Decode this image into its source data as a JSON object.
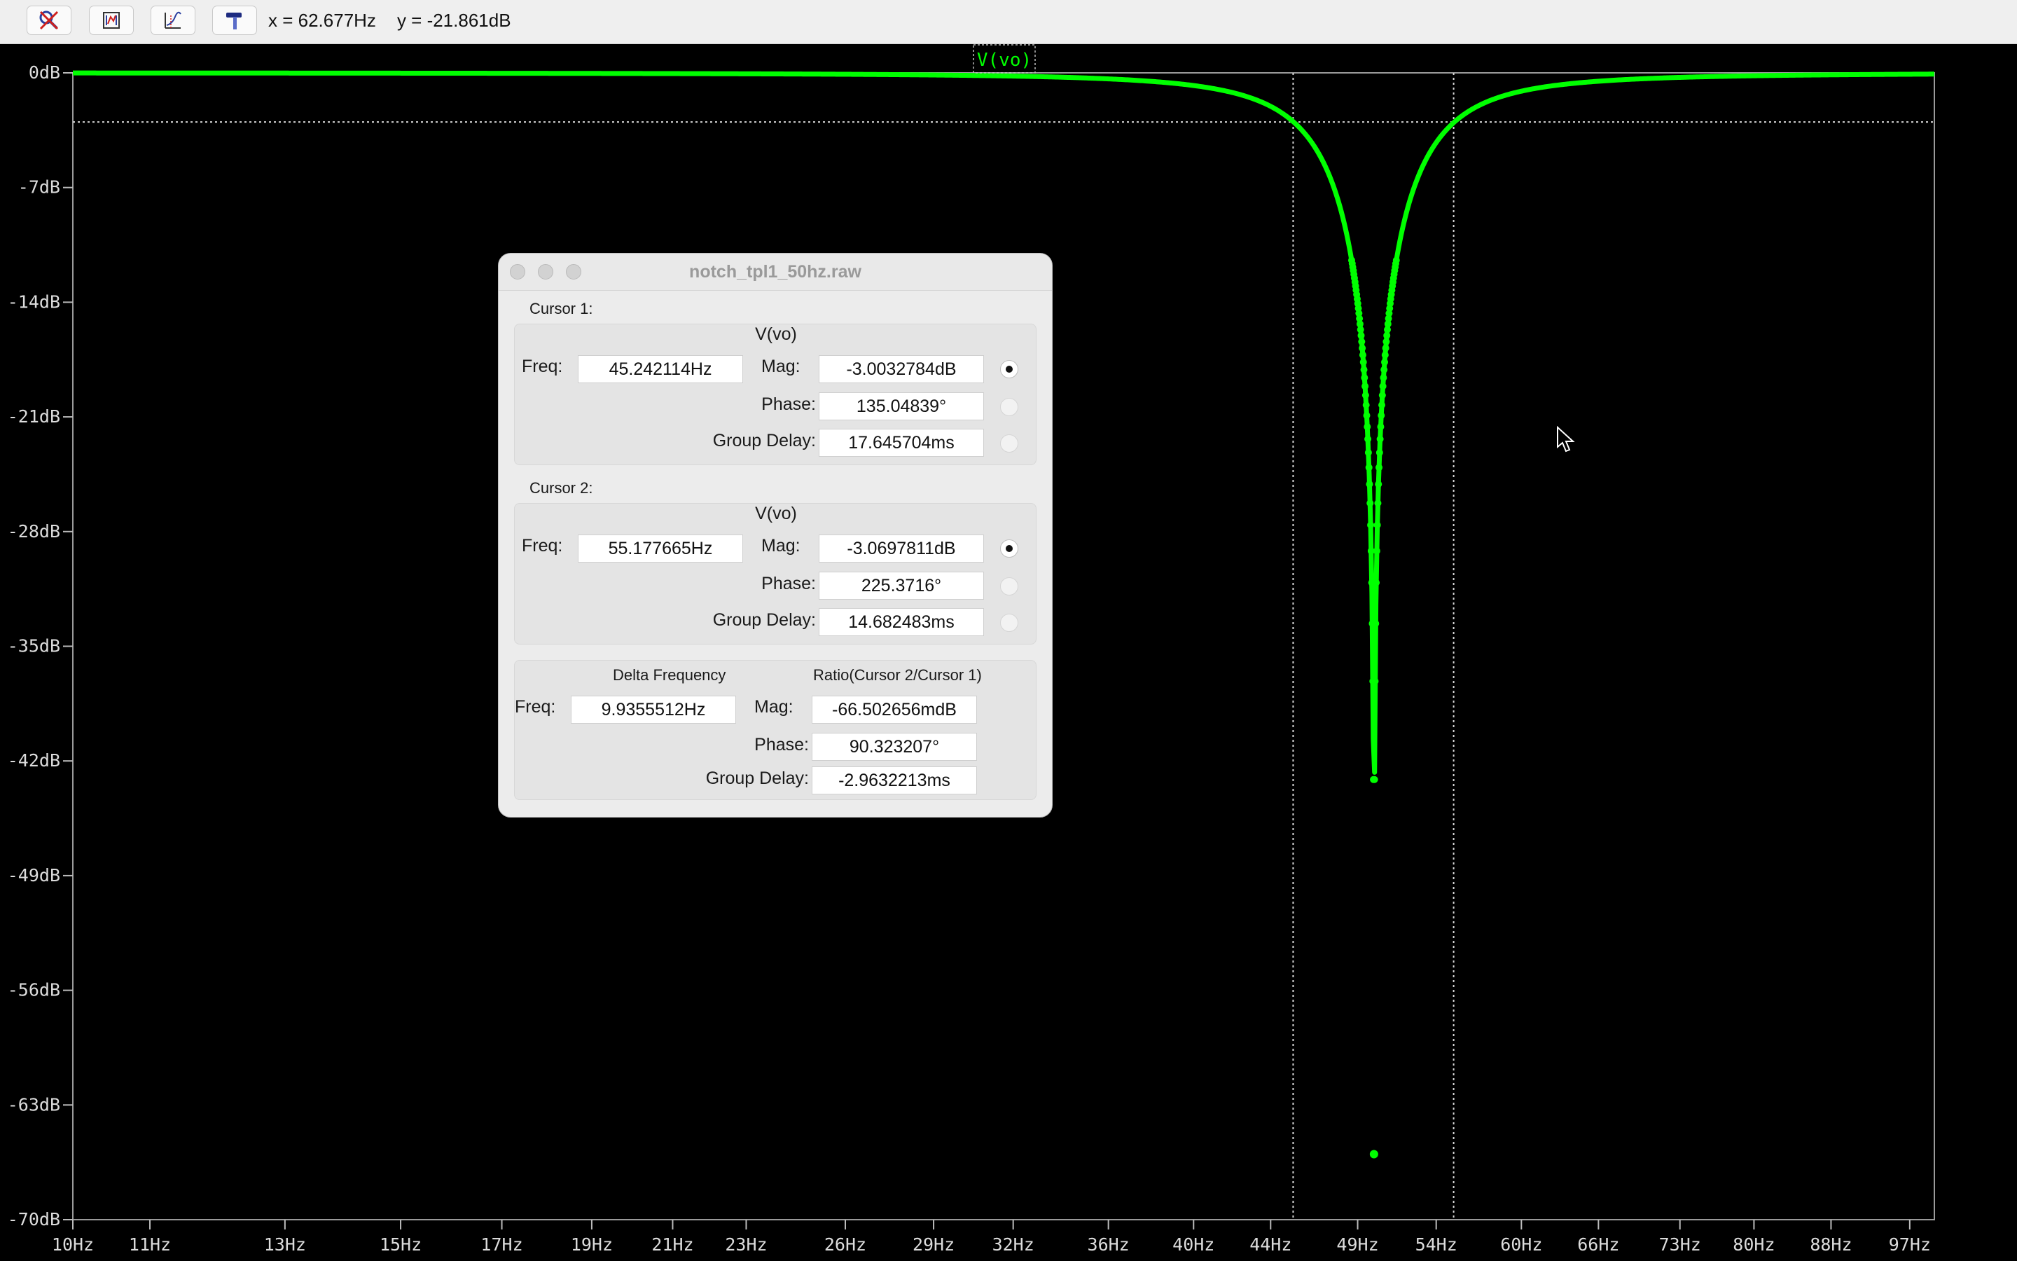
{
  "toolbar": {
    "buttons": [
      {
        "icon": "zoom-cancel-icon"
      },
      {
        "icon": "autorange-icon"
      },
      {
        "icon": "cursor-curve-icon"
      },
      {
        "icon": "hammer-icon"
      }
    ],
    "readout_x": "x = 62.677Hz",
    "readout_y": "y = -21.861dB"
  },
  "chart_data": {
    "type": "line",
    "trace_name": "V(vo)",
    "xscale": "log",
    "xlim": [
      10,
      100
    ],
    "ylim": [
      -70,
      0
    ],
    "yticks": [
      0,
      -7,
      -14,
      -21,
      -28,
      -35,
      -42,
      -49,
      -56,
      -63,
      -70
    ],
    "ytick_labels": [
      "0dB",
      "-7dB",
      "-14dB",
      "-21dB",
      "-28dB",
      "-35dB",
      "-42dB",
      "-49dB",
      "-56dB",
      "-63dB",
      "-70dB"
    ],
    "xticks": [
      10,
      11,
      13,
      15,
      17,
      19,
      21,
      23,
      26,
      29,
      32,
      36,
      40,
      44,
      49,
      54,
      60,
      66,
      73,
      80,
      88,
      97
    ],
    "xtick_labels": [
      "10Hz",
      "11Hz",
      "13Hz",
      "15Hz",
      "17Hz",
      "19Hz",
      "21Hz",
      "23Hz",
      "26Hz",
      "29Hz",
      "32Hz",
      "36Hz",
      "40Hz",
      "44Hz",
      "49Hz",
      "54Hz",
      "60Hz",
      "66Hz",
      "73Hz",
      "80Hz",
      "88Hz",
      "97Hz"
    ],
    "notch_center_hz": 50.0,
    "notch_min_db": -66.0,
    "cursor1_hz": 45.242114,
    "cursor2_hz": 55.177665,
    "cursor_level_db": -3.0,
    "trace_color": "#00ff00"
  },
  "dialog": {
    "title": "notch_tpl1_50hz.raw",
    "cursor1": {
      "label": "Cursor 1:",
      "trace": "V(vo)",
      "freq_label": "Freq:",
      "freq": "45.242114Hz",
      "mag_label": "Mag:",
      "mag": "-3.0032784dB",
      "phase_label": "Phase:",
      "phase": "135.04839°",
      "gd_label": "Group Delay:",
      "gd": "17.645704ms"
    },
    "cursor2": {
      "label": "Cursor 2:",
      "trace": "V(vo)",
      "freq_label": "Freq:",
      "freq": "55.177665Hz",
      "mag_label": "Mag:",
      "mag": "-3.0697811dB",
      "phase_label": "Phase:",
      "phase": "225.3716°",
      "gd_label": "Group Delay:",
      "gd": "14.682483ms"
    },
    "delta": {
      "head_left": "Delta Frequency",
      "head_right": "Ratio(Cursor 2/Cursor 1)",
      "freq_label": "Freq:",
      "freq": "9.9355512Hz",
      "mag_label": "Mag:",
      "mag": "-66.502656mdB",
      "phase_label": "Phase:",
      "phase": "90.323207°",
      "gd_label": "Group Delay:",
      "gd": "-2.9632213ms"
    }
  }
}
